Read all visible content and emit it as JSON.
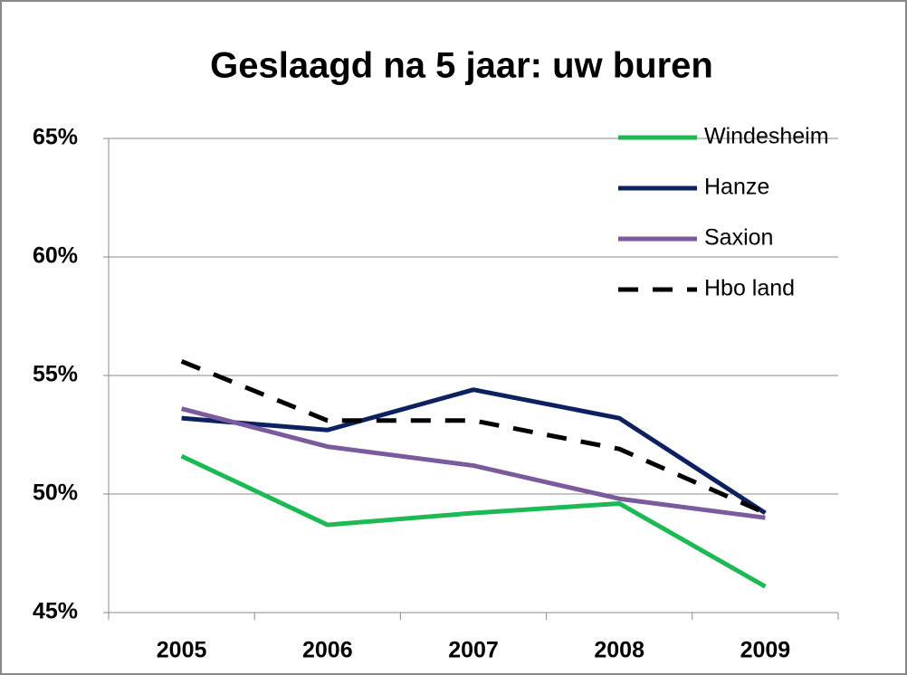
{
  "chart_data": {
    "type": "line",
    "title": "Geslaagd na 5 jaar: uw buren",
    "categories": [
      "2005",
      "2006",
      "2007",
      "2008",
      "2009"
    ],
    "series": [
      {
        "name": "Windesheim",
        "color": "#1db954",
        "values": [
          51.6,
          48.7,
          49.2,
          49.6,
          46.1
        ]
      },
      {
        "name": "Hanze",
        "color": "#0d2160",
        "values": [
          53.2,
          52.7,
          54.4,
          53.2,
          49.2
        ]
      },
      {
        "name": "Saxion",
        "color": "#7b5a9e",
        "values": [
          53.6,
          52.0,
          51.2,
          49.8,
          49.0
        ]
      },
      {
        "name": "Hbo land",
        "color": "#000000",
        "dashed": true,
        "values": [
          55.6,
          53.1,
          53.1,
          51.9,
          49.2
        ]
      }
    ],
    "ylim": [
      45,
      65
    ],
    "yticks": [
      {
        "value": 45,
        "label": "45%"
      },
      {
        "value": 50,
        "label": "50%"
      },
      {
        "value": 55,
        "label": "55%"
      },
      {
        "value": 60,
        "label": "60%"
      },
      {
        "value": 65,
        "label": "65%"
      }
    ],
    "grid": true,
    "legend": "top-right"
  }
}
